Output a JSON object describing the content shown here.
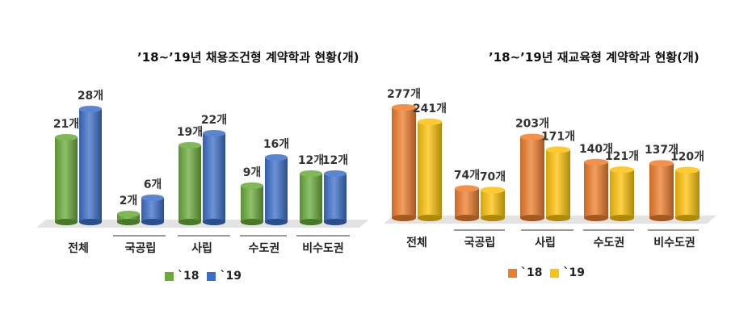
{
  "chart_data": [
    {
      "type": "bar",
      "title": "’18~’19년 채용조건형 계약학과 현황(개)",
      "categories": [
        "전체",
        "국공립",
        "사립",
        "수도권",
        "비수도권"
      ],
      "series": [
        {
          "name": "`18",
          "values": [
            21,
            2,
            19,
            9,
            12
          ],
          "labels": [
            "21개",
            "2개",
            "19개",
            "9개",
            "12개"
          ],
          "color": "#6aab3a"
        },
        {
          "name": "`19",
          "values": [
            28,
            6,
            22,
            16,
            12
          ],
          "labels": [
            "28개",
            "6개",
            "22개",
            "16개",
            "12개"
          ],
          "color": "#3c6fc9"
        }
      ],
      "ylim": [
        0,
        28
      ],
      "grid": false,
      "legend": "bottom"
    },
    {
      "type": "bar",
      "title": "’18~’19년 재교육형 계약학과 현황(개)",
      "categories": [
        "전체",
        "국공립",
        "사립",
        "수도권",
        "비수도권"
      ],
      "series": [
        {
          "name": "`18",
          "values": [
            277,
            74,
            203,
            140,
            137
          ],
          "labels": [
            "277개",
            "74개",
            "203개",
            "140개",
            "137개"
          ],
          "color": "#ee7d2b"
        },
        {
          "name": "`19",
          "values": [
            241,
            70,
            171,
            121,
            120
          ],
          "labels": [
            "241개",
            "70개",
            "171개",
            "121개",
            "120개"
          ],
          "color": "#fdc20a"
        }
      ],
      "ylim": [
        0,
        277
      ],
      "grid": false,
      "legend": "bottom"
    }
  ]
}
